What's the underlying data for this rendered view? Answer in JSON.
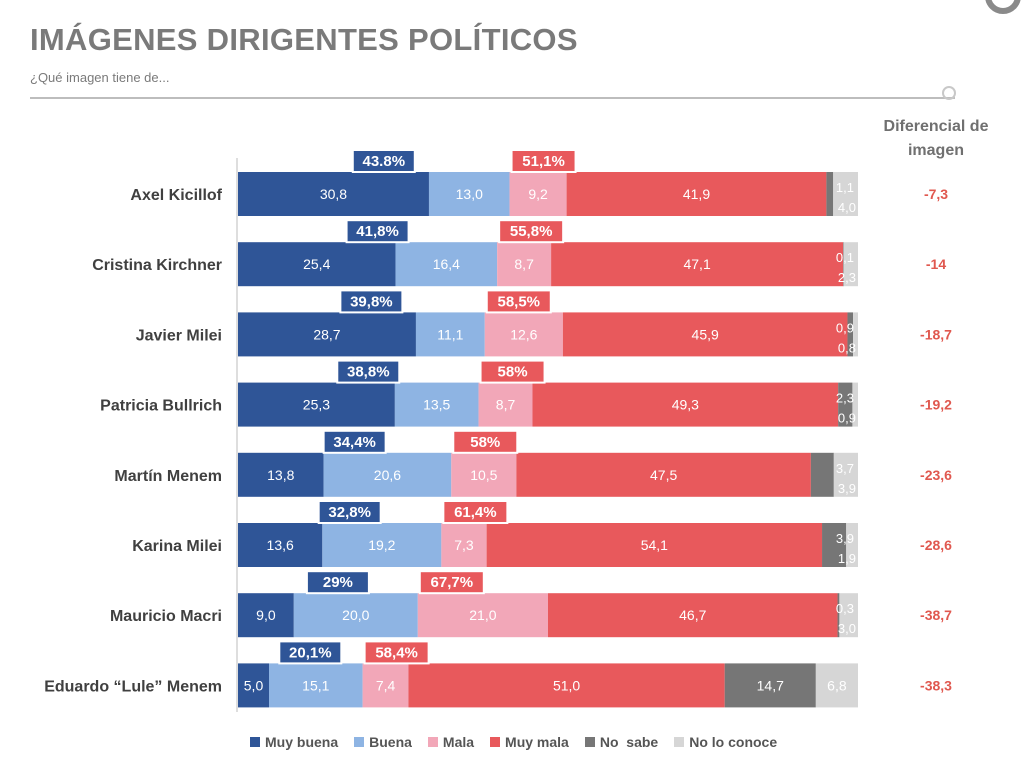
{
  "header": {
    "title": "IMÁGENES DIRIGENTES POLÍTICOS",
    "subtitle": "¿Qué imagen tiene de...",
    "diff_header_line1": "Diferencial de",
    "diff_header_line2": "imagen"
  },
  "colors": {
    "muy_buena": "#2f5597",
    "buena": "#8eb4e3",
    "mala": "#f2a7b8",
    "muy_mala": "#e8595c",
    "no_sabe": "#767676",
    "no_lo_conoce": "#d6d6d6",
    "diff_text": "#e0584f",
    "positive_box": "#2f5597",
    "negative_box": "#e8595c"
  },
  "chart_data": {
    "type": "bar",
    "orientation": "horizontal-stacked",
    "categories": [
      "Axel Kicillof",
      "Cristina Kirchner",
      "Javier Milei",
      "Patricia Bullrich",
      "Martín Menem",
      "Karina Milei",
      "Mauricio Macri",
      "Eduardo “Lule” Menem"
    ],
    "series": [
      {
        "name": "Muy buena",
        "values": [
          30.8,
          25.4,
          28.7,
          25.3,
          13.8,
          13.6,
          9.0,
          5.0
        ],
        "labels": [
          "30,8",
          "25,4",
          "28,7",
          "25,3",
          "13,8",
          "13,6",
          "9,0",
          "5,0"
        ]
      },
      {
        "name": "Buena",
        "values": [
          13.0,
          16.4,
          11.1,
          13.5,
          20.6,
          19.2,
          20.0,
          15.1
        ],
        "labels": [
          "13,0",
          "16,4",
          "11,1",
          "13,5",
          "20,6",
          "19,2",
          "20,0",
          "15,1"
        ]
      },
      {
        "name": "Mala",
        "values": [
          9.2,
          8.7,
          12.6,
          8.7,
          10.5,
          7.3,
          21.0,
          7.4
        ],
        "labels": [
          "9,2",
          "8,7",
          "12,6",
          "8,7",
          "10,5",
          "7,3",
          "21,0",
          "7,4"
        ]
      },
      {
        "name": "Muy mala",
        "values": [
          41.9,
          47.1,
          45.9,
          49.3,
          47.5,
          54.1,
          46.7,
          51.0
        ],
        "labels": [
          "41,9",
          "47,1",
          "45,9",
          "49,3",
          "47,5",
          "54,1",
          "46,7",
          "51,0"
        ]
      },
      {
        "name": "No  sabe",
        "values": [
          1.1,
          0.1,
          0.9,
          2.3,
          3.7,
          3.9,
          0.3,
          14.7
        ],
        "labels": [
          "1,1",
          "0,1",
          "0,9",
          "2,3",
          "3,7",
          "3,9",
          "0,3",
          "14,7"
        ]
      },
      {
        "name": "No lo conoce",
        "values": [
          4.0,
          2.3,
          0.8,
          0.9,
          3.9,
          1.9,
          3.0,
          6.8
        ],
        "labels": [
          "4,0",
          "2,3",
          "0,8",
          "0,9",
          "3,9",
          "1,9",
          "3,0",
          "6,8"
        ]
      }
    ],
    "positive_totals": [
      "43.8%",
      "41,8%",
      "39,8%",
      "38,8%",
      "34,4%",
      "32,8%",
      "29%",
      "20,1%"
    ],
    "negative_totals": [
      "51,1%",
      "55,8%",
      "58,5%",
      "58%",
      "58%",
      "61,4%",
      "67,7%",
      "58,4%"
    ],
    "differential": [
      "-7,3",
      "-14",
      "-18,7",
      "-19,2",
      "-23,6",
      "-28,6",
      "-38,7",
      "-38,3"
    ],
    "legend_position": "bottom",
    "grid": false
  }
}
